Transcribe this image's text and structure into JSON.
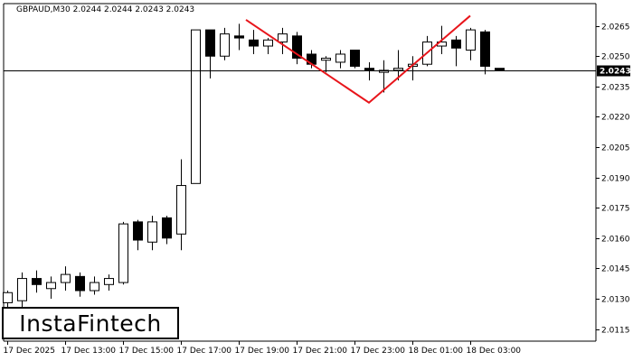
{
  "header": {
    "symbol": "GBPAUD,M30",
    "ohlc": "2.0244 2.0244 2.0243 2.0243"
  },
  "logo": {
    "text": "InstaFintech"
  },
  "colors": {
    "bull_body": "#ffffff",
    "bear_body": "#000000",
    "candle_outline": "#000000",
    "pattern_line": "#e8151b",
    "price_line": "#000000",
    "price_label_bg": "#000000",
    "price_label_text": "#ffffff"
  },
  "chart_data": {
    "type": "candlestick",
    "title": "",
    "current_price": 2.0243,
    "current_price_label": "2.0243",
    "ylim": [
      2.0109,
      2.0276
    ],
    "y_ticks": [
      {
        "value": 2.0265,
        "label": "2.0265"
      },
      {
        "value": 2.025,
        "label": "2.0250"
      },
      {
        "value": 2.0235,
        "label": "2.0235"
      },
      {
        "value": 2.022,
        "label": "2.0220"
      },
      {
        "value": 2.0205,
        "label": "2.0205"
      },
      {
        "value": 2.019,
        "label": "2.0190"
      },
      {
        "value": 2.0175,
        "label": "2.0175"
      },
      {
        "value": 2.016,
        "label": "2.0160"
      },
      {
        "value": 2.0145,
        "label": "2.0145"
      },
      {
        "value": 2.013,
        "label": "2.0130"
      },
      {
        "value": 2.0115,
        "label": "2.0115"
      }
    ],
    "x_ticks": [
      {
        "index": 0,
        "label": "17 Dec 2025"
      },
      {
        "index": 4,
        "label": "17 Dec 13:00"
      },
      {
        "index": 8,
        "label": "17 Dec 15:00"
      },
      {
        "index": 12,
        "label": "17 Dec 17:00"
      },
      {
        "index": 16,
        "label": "17 Dec 19:00"
      },
      {
        "index": 20,
        "label": "17 Dec 21:00"
      },
      {
        "index": 24,
        "label": "17 Dec 23:00"
      },
      {
        "index": 28,
        "label": "18 Dec 01:00"
      },
      {
        "index": 32,
        "label": "18 Dec 03:00"
      }
    ],
    "candles": [
      {
        "o": 2.0128,
        "h": 2.0134,
        "l": 2.0122,
        "c": 2.0133
      },
      {
        "o": 2.0129,
        "h": 2.0143,
        "l": 2.0124,
        "c": 2.014
      },
      {
        "o": 2.014,
        "h": 2.0144,
        "l": 2.0133,
        "c": 2.0137
      },
      {
        "o": 2.0135,
        "h": 2.0141,
        "l": 2.013,
        "c": 2.0138
      },
      {
        "o": 2.0138,
        "h": 2.0146,
        "l": 2.0134,
        "c": 2.0142
      },
      {
        "o": 2.0141,
        "h": 2.0143,
        "l": 2.0131,
        "c": 2.0134
      },
      {
        "o": 2.0134,
        "h": 2.0141,
        "l": 2.0132,
        "c": 2.0138
      },
      {
        "o": 2.0137,
        "h": 2.0142,
        "l": 2.0134,
        "c": 2.014
      },
      {
        "o": 2.0138,
        "h": 2.0168,
        "l": 2.0137,
        "c": 2.0167
      },
      {
        "o": 2.0168,
        "h": 2.0169,
        "l": 2.0154,
        "c": 2.0159
      },
      {
        "o": 2.0158,
        "h": 2.0171,
        "l": 2.0154,
        "c": 2.0168
      },
      {
        "o": 2.017,
        "h": 2.0171,
        "l": 2.0157,
        "c": 2.016
      },
      {
        "o": 2.0162,
        "h": 2.0199,
        "l": 2.0154,
        "c": 2.0186
      },
      {
        "o": 2.0187,
        "h": 2.0263,
        "l": 2.0187,
        "c": 2.0263
      },
      {
        "o": 2.0263,
        "h": 2.0263,
        "l": 2.0239,
        "c": 2.025
      },
      {
        "o": 2.025,
        "h": 2.0264,
        "l": 2.0248,
        "c": 2.0261
      },
      {
        "o": 2.026,
        "h": 2.0266,
        "l": 2.0253,
        "c": 2.0259
      },
      {
        "o": 2.0258,
        "h": 2.0263,
        "l": 2.0251,
        "c": 2.0255
      },
      {
        "o": 2.0255,
        "h": 2.0259,
        "l": 2.0251,
        "c": 2.0258
      },
      {
        "o": 2.0257,
        "h": 2.0264,
        "l": 2.0251,
        "c": 2.0261
      },
      {
        "o": 2.026,
        "h": 2.0262,
        "l": 2.0246,
        "c": 2.0249
      },
      {
        "o": 2.0251,
        "h": 2.0253,
        "l": 2.0244,
        "c": 2.0246
      },
      {
        "o": 2.0248,
        "h": 2.025,
        "l": 2.0242,
        "c": 2.0249
      },
      {
        "o": 2.0247,
        "h": 2.0253,
        "l": 2.0244,
        "c": 2.0251
      },
      {
        "o": 2.0253,
        "h": 2.0253,
        "l": 2.0244,
        "c": 2.0245
      },
      {
        "o": 2.0244,
        "h": 2.0247,
        "l": 2.0238,
        "c": 2.0243
      },
      {
        "o": 2.0242,
        "h": 2.0248,
        "l": 2.0232,
        "c": 2.0243
      },
      {
        "o": 2.0243,
        "h": 2.0253,
        "l": 2.0238,
        "c": 2.0244
      },
      {
        "o": 2.0245,
        "h": 2.025,
        "l": 2.0238,
        "c": 2.0246
      },
      {
        "o": 2.0246,
        "h": 2.026,
        "l": 2.0245,
        "c": 2.0257
      },
      {
        "o": 2.0255,
        "h": 2.0265,
        "l": 2.0251,
        "c": 2.0257
      },
      {
        "o": 2.0258,
        "h": 2.026,
        "l": 2.0245,
        "c": 2.0254
      },
      {
        "o": 2.0253,
        "h": 2.0264,
        "l": 2.0248,
        "c": 2.0263
      },
      {
        "o": 2.0262,
        "h": 2.0263,
        "l": 2.0241,
        "c": 2.0245
      },
      {
        "o": 2.0244,
        "h": 2.0244,
        "l": 2.0243,
        "c": 2.0243
      }
    ],
    "pattern": {
      "name": "double top",
      "points": [
        {
          "index": 16.5,
          "price": 2.0268
        },
        {
          "index": 25.0,
          "price": 2.0227
        },
        {
          "index": 32.0,
          "price": 2.027
        }
      ]
    }
  }
}
